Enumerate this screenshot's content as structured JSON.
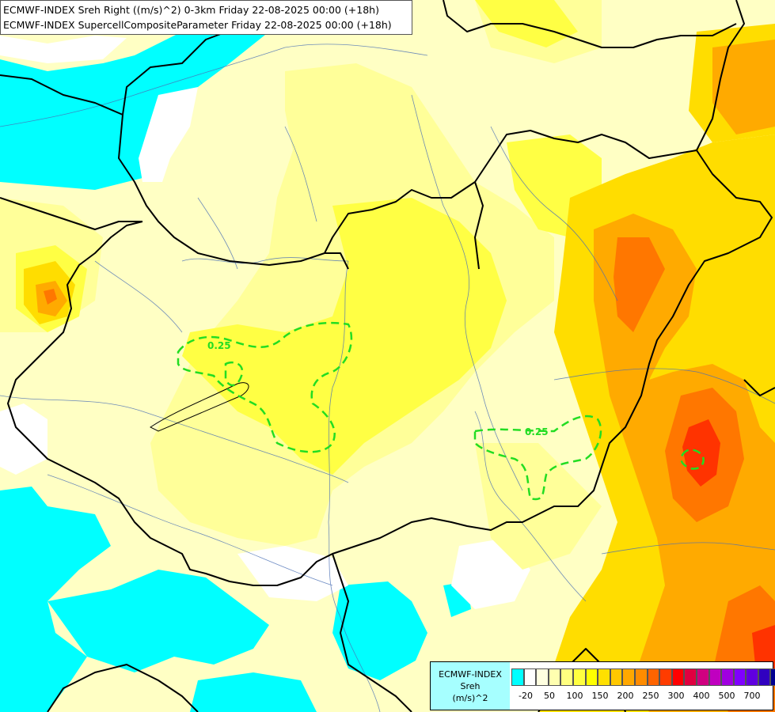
{
  "title": {
    "line1": "ECMWF-INDEX Sreh Right ((m/s)^2) 0-3km Friday 22-08-2025 00:00 (+18h)",
    "line2": "ECMWF-INDEX SupercellCompositeParameter Friday 22-08-2025 00:00 (+18h)"
  },
  "contour_labels": [
    "0.25",
    "0.25"
  ],
  "legend": {
    "line1": "ECMWF-INDEX",
    "line2": "Sreh",
    "line3": "(m/s)^2",
    "colors": [
      "#00ffff",
      "#ffffff",
      "#ffffe0",
      "#ffffb0",
      "#ffff80",
      "#ffff40",
      "#ffff00",
      "#ffe000",
      "#ffc800",
      "#ffa800",
      "#ff8c00",
      "#ff6400",
      "#ff3c00",
      "#ff0000",
      "#e00040",
      "#d00080",
      "#c000c0",
      "#a000e0",
      "#8000ff",
      "#6000e0",
      "#3000c0",
      "#000090"
    ],
    "ticks": [
      "-20",
      "50",
      "100",
      "150",
      "200",
      "250",
      "300",
      "400",
      "500",
      "700"
    ]
  },
  "palette": {
    "cyan": "#00ffff",
    "pale": "#ffffc4",
    "light_yellow": "#ffff99",
    "yellow": "#ffff44",
    "gold": "#ffdd00",
    "orange": "#ffaa00",
    "dark_orange": "#ff7700",
    "red": "#ff3300",
    "contour": "#22dd22"
  }
}
